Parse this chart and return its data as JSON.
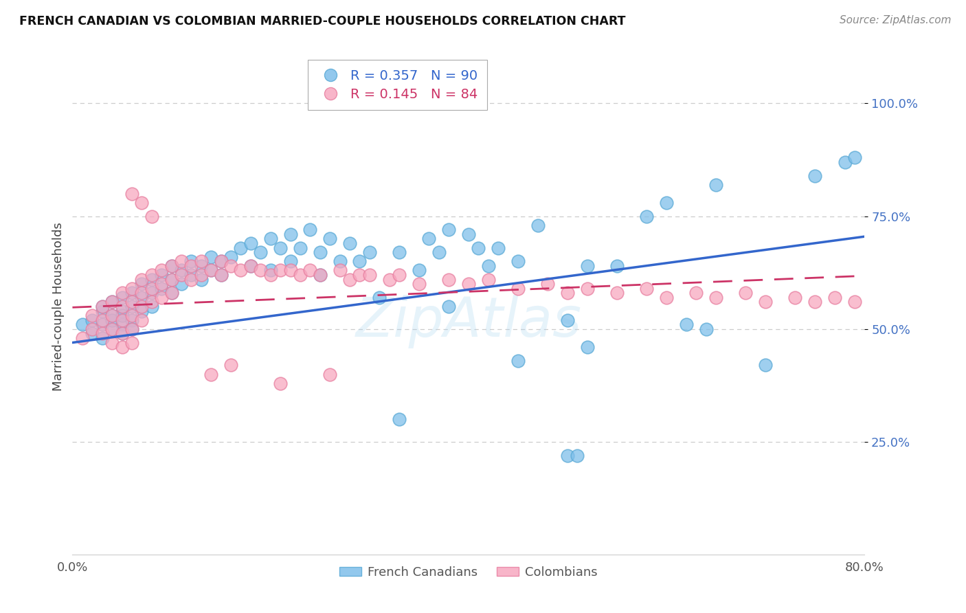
{
  "title": "FRENCH CANADIAN VS COLOMBIAN MARRIED-COUPLE HOUSEHOLDS CORRELATION CHART",
  "source": "Source: ZipAtlas.com",
  "ylabel": "Married-couple Households",
  "blue_color": "#7fbfea",
  "blue_edge_color": "#5aaad6",
  "blue_line_color": "#3366cc",
  "pink_color": "#f7a8c0",
  "pink_edge_color": "#e87fa0",
  "pink_line_color": "#cc3366",
  "legend_R_blue": "0.357",
  "legend_N_blue": "90",
  "legend_R_pink": "0.145",
  "legend_N_pink": "84",
  "legend_label_blue": "French Canadians",
  "legend_label_pink": "Colombians",
  "ytick_color": "#4472c4",
  "grid_color": "#cccccc",
  "xlim": [
    0.0,
    0.8
  ],
  "ylim": [
    0.0,
    1.1
  ],
  "blue_x": [
    0.01,
    0.02,
    0.02,
    0.03,
    0.03,
    0.03,
    0.03,
    0.04,
    0.04,
    0.04,
    0.04,
    0.05,
    0.05,
    0.05,
    0.05,
    0.05,
    0.06,
    0.06,
    0.06,
    0.06,
    0.07,
    0.07,
    0.07,
    0.08,
    0.08,
    0.08,
    0.09,
    0.09,
    0.1,
    0.1,
    0.1,
    0.11,
    0.11,
    0.12,
    0.12,
    0.13,
    0.13,
    0.14,
    0.14,
    0.15,
    0.15,
    0.16,
    0.17,
    0.18,
    0.18,
    0.19,
    0.2,
    0.2,
    0.21,
    0.22,
    0.22,
    0.23,
    0.24,
    0.25,
    0.25,
    0.26,
    0.27,
    0.28,
    0.29,
    0.3,
    0.31,
    0.33,
    0.35,
    0.36,
    0.37,
    0.38,
    0.4,
    0.41,
    0.42,
    0.43,
    0.45,
    0.47,
    0.5,
    0.52,
    0.55,
    0.58,
    0.6,
    0.62,
    0.33,
    0.38,
    0.45,
    0.5,
    0.51,
    0.52,
    0.64,
    0.65,
    0.7,
    0.75,
    0.78,
    0.79
  ],
  "blue_y": [
    0.51,
    0.52,
    0.49,
    0.54,
    0.51,
    0.48,
    0.55,
    0.53,
    0.5,
    0.56,
    0.52,
    0.57,
    0.54,
    0.51,
    0.49,
    0.53,
    0.58,
    0.55,
    0.52,
    0.5,
    0.6,
    0.57,
    0.54,
    0.61,
    0.58,
    0.55,
    0.62,
    0.59,
    0.64,
    0.61,
    0.58,
    0.63,
    0.6,
    0.65,
    0.62,
    0.64,
    0.61,
    0.66,
    0.63,
    0.65,
    0.62,
    0.66,
    0.68,
    0.69,
    0.64,
    0.67,
    0.7,
    0.63,
    0.68,
    0.71,
    0.65,
    0.68,
    0.72,
    0.67,
    0.62,
    0.7,
    0.65,
    0.69,
    0.65,
    0.67,
    0.57,
    0.67,
    0.63,
    0.7,
    0.67,
    0.72,
    0.71,
    0.68,
    0.64,
    0.68,
    0.65,
    0.73,
    0.52,
    0.64,
    0.64,
    0.75,
    0.78,
    0.51,
    0.3,
    0.55,
    0.43,
    0.22,
    0.22,
    0.46,
    0.5,
    0.82,
    0.42,
    0.84,
    0.87,
    0.88
  ],
  "pink_x": [
    0.01,
    0.02,
    0.02,
    0.03,
    0.03,
    0.03,
    0.04,
    0.04,
    0.04,
    0.04,
    0.05,
    0.05,
    0.05,
    0.05,
    0.05,
    0.06,
    0.06,
    0.06,
    0.06,
    0.06,
    0.07,
    0.07,
    0.07,
    0.07,
    0.08,
    0.08,
    0.08,
    0.09,
    0.09,
    0.09,
    0.1,
    0.1,
    0.1,
    0.11,
    0.11,
    0.12,
    0.12,
    0.13,
    0.13,
    0.14,
    0.15,
    0.15,
    0.16,
    0.17,
    0.18,
    0.19,
    0.2,
    0.21,
    0.22,
    0.23,
    0.24,
    0.25,
    0.27,
    0.28,
    0.29,
    0.3,
    0.32,
    0.33,
    0.35,
    0.38,
    0.4,
    0.42,
    0.45,
    0.48,
    0.5,
    0.52,
    0.55,
    0.58,
    0.6,
    0.63,
    0.65,
    0.68,
    0.7,
    0.73,
    0.75,
    0.77,
    0.79,
    0.06,
    0.07,
    0.08,
    0.14,
    0.16,
    0.21,
    0.26
  ],
  "pink_y": [
    0.48,
    0.53,
    0.5,
    0.55,
    0.52,
    0.49,
    0.56,
    0.53,
    0.5,
    0.47,
    0.58,
    0.55,
    0.52,
    0.49,
    0.46,
    0.59,
    0.56,
    0.53,
    0.5,
    0.47,
    0.61,
    0.58,
    0.55,
    0.52,
    0.62,
    0.59,
    0.56,
    0.63,
    0.6,
    0.57,
    0.64,
    0.61,
    0.58,
    0.65,
    0.62,
    0.64,
    0.61,
    0.65,
    0.62,
    0.63,
    0.65,
    0.62,
    0.64,
    0.63,
    0.64,
    0.63,
    0.62,
    0.63,
    0.63,
    0.62,
    0.63,
    0.62,
    0.63,
    0.61,
    0.62,
    0.62,
    0.61,
    0.62,
    0.6,
    0.61,
    0.6,
    0.61,
    0.59,
    0.6,
    0.58,
    0.59,
    0.58,
    0.59,
    0.57,
    0.58,
    0.57,
    0.58,
    0.56,
    0.57,
    0.56,
    0.57,
    0.56,
    0.8,
    0.78,
    0.75,
    0.4,
    0.42,
    0.38,
    0.4
  ]
}
